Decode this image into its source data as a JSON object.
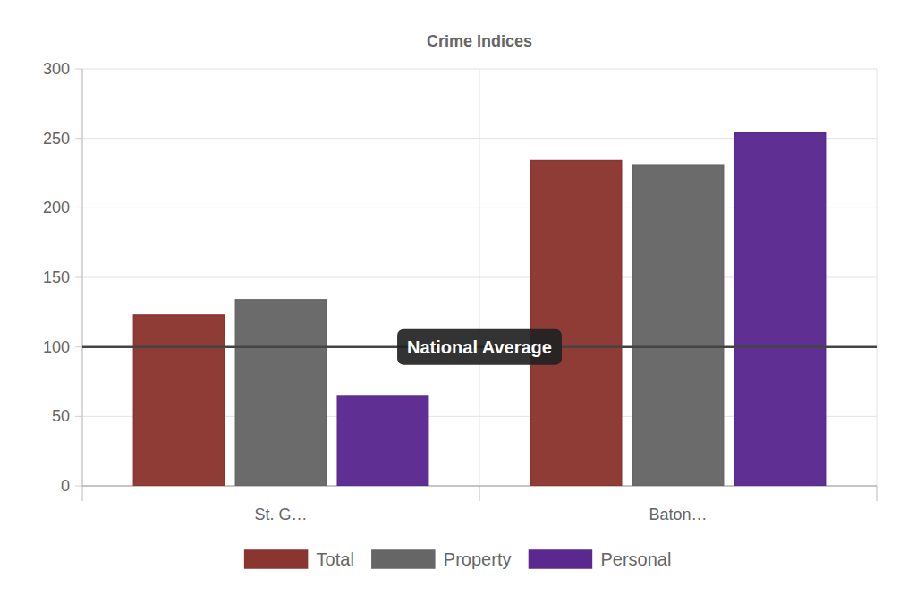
{
  "chart_data": {
    "type": "bar",
    "title": "Crime Indices",
    "categories": [
      "St. G…",
      "Baton…"
    ],
    "series": [
      {
        "name": "Total",
        "color": "#8b3530",
        "values": [
          123,
          234
        ]
      },
      {
        "name": "Property",
        "color": "#666666",
        "values": [
          134,
          231
        ]
      },
      {
        "name": "Personal",
        "color": "#5b288f",
        "values": [
          65,
          254
        ]
      }
    ],
    "ylim": [
      0,
      300
    ],
    "yticks": [
      0,
      50,
      100,
      150,
      200,
      250,
      300
    ],
    "grid": true,
    "legend": "bottom",
    "annotations": [
      {
        "label": "National Average",
        "y": 100
      }
    ]
  }
}
